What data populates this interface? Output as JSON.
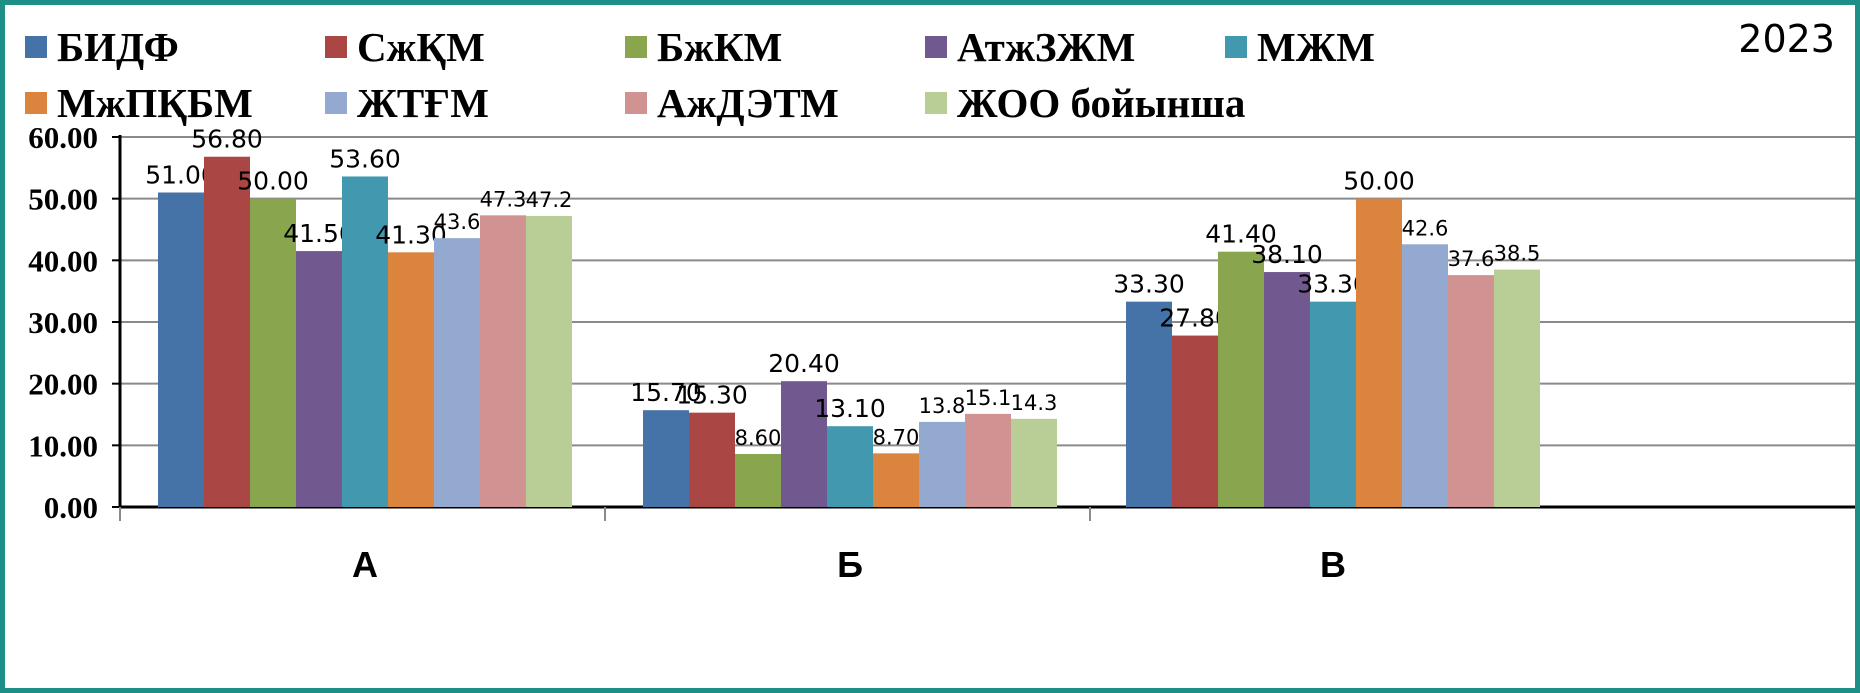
{
  "chart_data": {
    "type": "bar",
    "title": "2023",
    "categories": [
      "А",
      "Б",
      "В"
    ],
    "ylim": [
      0,
      60
    ],
    "yticks": [
      "0.00",
      "10.00",
      "20.00",
      "30.00",
      "40.00",
      "50.00",
      "60.00"
    ],
    "grid": true,
    "legend_position": "top",
    "series": [
      {
        "name": "БИДФ",
        "color": "#4572a7",
        "values": [
          51.0,
          15.7,
          33.3
        ],
        "labels": [
          "51.00",
          "15.70",
          "33.30"
        ]
      },
      {
        "name": "СжҚМ",
        "color": "#aa4643",
        "values": [
          56.8,
          15.3,
          27.8
        ],
        "labels": [
          "56.80",
          "15.30",
          "27.80"
        ]
      },
      {
        "name": "БжКМ",
        "color": "#89a54e",
        "values": [
          50.0,
          8.6,
          41.4
        ],
        "labels": [
          "50.00",
          "8.60",
          "41.40"
        ]
      },
      {
        "name": "АтжЗЖМ",
        "color": "#71588f",
        "values": [
          41.5,
          20.4,
          38.1
        ],
        "labels": [
          "41.50",
          "20.40",
          "38.10"
        ]
      },
      {
        "name": "МЖМ",
        "color": "#4198af",
        "values": [
          53.6,
          13.1,
          33.3
        ],
        "labels": [
          "53.60",
          "13.10",
          "33.30"
        ]
      },
      {
        "name": "МжПҚБМ",
        "color": "#db843d",
        "values": [
          41.3,
          8.7,
          50.0
        ],
        "labels": [
          "41.30",
          "8.70",
          "50.00"
        ]
      },
      {
        "name": "ЖТҒМ",
        "color": "#93a9cf",
        "values": [
          43.6,
          13.8,
          42.6
        ],
        "labels": [
          "43.6",
          "13.8",
          "42.6"
        ]
      },
      {
        "name": "АжДЭТМ",
        "color": "#d19392",
        "values": [
          47.3,
          15.1,
          37.6
        ],
        "labels": [
          "47.3",
          "15.1",
          "37.6"
        ]
      },
      {
        "name": "ЖОО бойынша",
        "color": "#b9cd96",
        "values": [
          47.2,
          14.3,
          38.5
        ],
        "labels": [
          "47.2",
          "14.3",
          "38.5"
        ]
      }
    ]
  }
}
